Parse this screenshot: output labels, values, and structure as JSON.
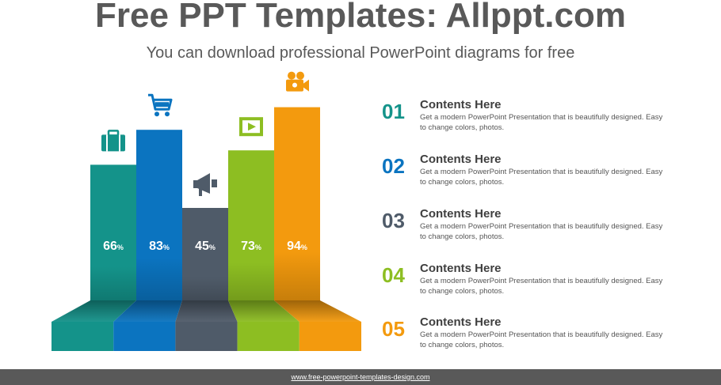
{
  "header": {
    "title": "Free PPT Templates: Allppt.com",
    "subtitle": "You can download professional PowerPoint diagrams for free"
  },
  "chart_data": {
    "type": "bar",
    "categories": [
      "",
      "",
      "",
      "",
      ""
    ],
    "values": [
      66,
      83,
      45,
      73,
      94
    ],
    "value_labels": [
      "66",
      "83",
      "45",
      "73",
      "94"
    ],
    "unit": "%",
    "ylim": [
      0,
      100
    ],
    "colors": [
      "#14938A",
      "#0B74C0",
      "#4F5B69",
      "#8DBE22",
      "#F39A0E"
    ],
    "icons": [
      "briefcase-icon",
      "shopping-cart-icon",
      "megaphone-icon",
      "film-icon",
      "video-camera-icon"
    ],
    "grid": false,
    "legend": "none"
  },
  "items": [
    {
      "num": "01",
      "heading": "Contents Here",
      "text": "Get a modern PowerPoint  Presentation that is beautifully designed. Easy to change colors, photos.",
      "color": "#14938A"
    },
    {
      "num": "02",
      "heading": "Contents Here",
      "text": "Get a modern PowerPoint  Presentation that is beautifully designed. Easy to change colors, photos.",
      "color": "#0B74C0"
    },
    {
      "num": "03",
      "heading": "Contents Here",
      "text": "Get a modern PowerPoint  Presentation that is beautifully designed. Easy to change colors, photos.",
      "color": "#4F5B69"
    },
    {
      "num": "04",
      "heading": "Contents Here",
      "text": "Get a modern PowerPoint  Presentation that is beautifully designed. Easy to change colors, photos.",
      "color": "#8DBE22"
    },
    {
      "num": "05",
      "heading": "Contents Here",
      "text": "Get a modern PowerPoint  Presentation that is beautifully designed. Easy to change colors, photos.",
      "color": "#F39A0E"
    }
  ],
  "footer": {
    "link_text": "www.free-powerpoint-templates-design.com"
  }
}
